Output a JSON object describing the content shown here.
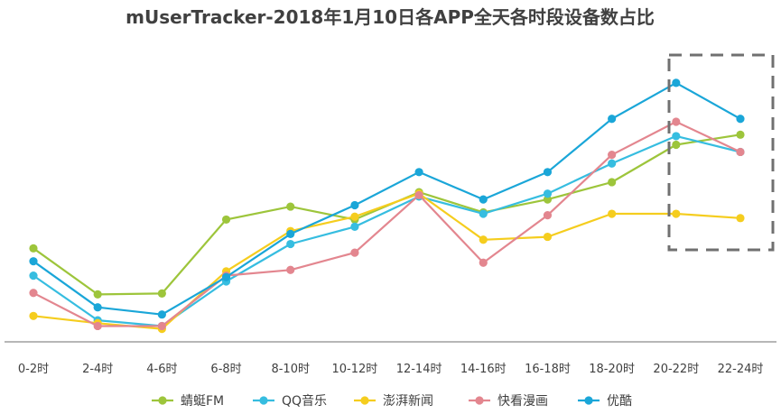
{
  "chart_data": {
    "type": "line",
    "title": "mUserTracker-2018年1月10日各APP全天各时段设备数占比",
    "xlabel": "",
    "ylabel": "",
    "categories": [
      "0-2时",
      "2-4时",
      "4-6时",
      "6-8时",
      "8-10时",
      "10-12时",
      "12-14时",
      "14-16时",
      "16-18时",
      "18-20时",
      "20-22时",
      "22-24时"
    ],
    "ylim": [
      0,
      100
    ],
    "grid": false,
    "legend_position": "bottom",
    "series": [
      {
        "name": "蜻蜓FM",
        "color": "#9dc53b",
        "values": [
          32.5,
          16.5,
          16.8,
          42.5,
          47,
          42.5,
          52,
          45,
          49.5,
          55.5,
          68.5,
          72
        ]
      },
      {
        "name": "QQ音乐",
        "color": "#36bde0",
        "values": [
          23,
          7.5,
          5.5,
          21,
          34,
          40,
          50.5,
          44.5,
          51.5,
          62,
          71.5,
          66
        ]
      },
      {
        "name": "澎湃新闻",
        "color": "#f5cd1e",
        "values": [
          9,
          6.5,
          4.5,
          24.5,
          38.5,
          43.5,
          51.5,
          35.5,
          36.5,
          44.5,
          44.5,
          43
        ]
      },
      {
        "name": "快看漫画",
        "color": "#e3868f",
        "values": [
          17,
          5.5,
          5.5,
          23,
          25,
          31,
          51,
          27.5,
          44,
          65,
          76.5,
          66
        ]
      },
      {
        "name": "优酷",
        "color": "#1aa6d8",
        "values": [
          28,
          12,
          9.5,
          22.5,
          37.5,
          47.5,
          59,
          49.5,
          59,
          77.5,
          90,
          77.5
        ]
      }
    ]
  }
}
